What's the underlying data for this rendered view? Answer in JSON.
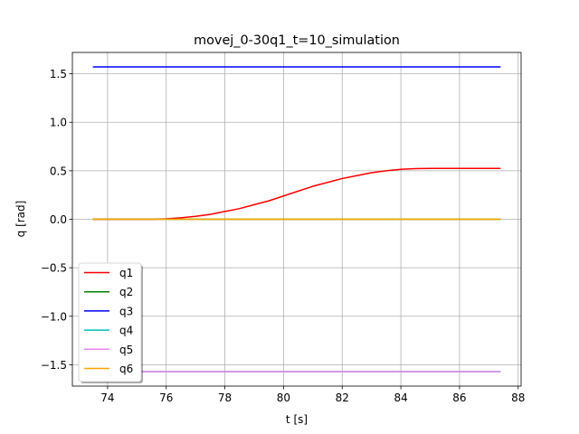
{
  "chart_data": {
    "type": "line",
    "title": "movej_0-30q1_t=10_simulation",
    "xlabel": "t [s]",
    "ylabel": "q [rad]",
    "xlim": [
      72.8,
      88.1
    ],
    "ylim": [
      -1.72,
      1.72
    ],
    "x_ticks": [
      74,
      76,
      78,
      80,
      82,
      84,
      86,
      88
    ],
    "y_ticks": [
      -1.5,
      -1.0,
      -0.5,
      0.0,
      0.5,
      1.0,
      1.5
    ],
    "x_tick_labels": [
      "74",
      "76",
      "78",
      "80",
      "82",
      "84",
      "86",
      "88"
    ],
    "y_tick_labels": [
      "−1.5",
      "−1.0",
      "−0.5",
      "0.0",
      "0.5",
      "1.0",
      "1.5"
    ],
    "grid": true,
    "legend_position": "lower-left",
    "series": [
      {
        "name": "q1",
        "color": "#ff0000",
        "x": [
          73.5,
          75.5,
          76.0,
          76.5,
          77.0,
          77.5,
          78.0,
          78.5,
          79.0,
          79.5,
          80.0,
          80.5,
          81.0,
          81.5,
          82.0,
          82.5,
          83.0,
          83.5,
          84.0,
          84.5,
          85.0,
          85.5,
          87.4
        ],
        "y": [
          0.0,
          0.0,
          0.005,
          0.015,
          0.03,
          0.05,
          0.08,
          0.11,
          0.15,
          0.19,
          0.24,
          0.29,
          0.34,
          0.38,
          0.42,
          0.45,
          0.48,
          0.5,
          0.515,
          0.522,
          0.524,
          0.524,
          0.524
        ]
      },
      {
        "name": "q2",
        "color": "#008000",
        "x": [
          73.5,
          87.4
        ],
        "y": [
          0.0,
          0.0
        ]
      },
      {
        "name": "q3",
        "color": "#0000ff",
        "x": [
          73.5,
          87.4
        ],
        "y": [
          1.571,
          1.571
        ]
      },
      {
        "name": "q4",
        "color": "#00bfbf",
        "x": [
          73.5,
          87.4
        ],
        "y": [
          -1.571,
          -1.571
        ]
      },
      {
        "name": "q5",
        "color": "#ee82ee",
        "x": [
          73.5,
          87.4
        ],
        "y": [
          -1.571,
          -1.571
        ]
      },
      {
        "name": "q6",
        "color": "#ffa500",
        "x": [
          73.5,
          87.4
        ],
        "y": [
          0.0,
          0.0
        ]
      }
    ]
  }
}
